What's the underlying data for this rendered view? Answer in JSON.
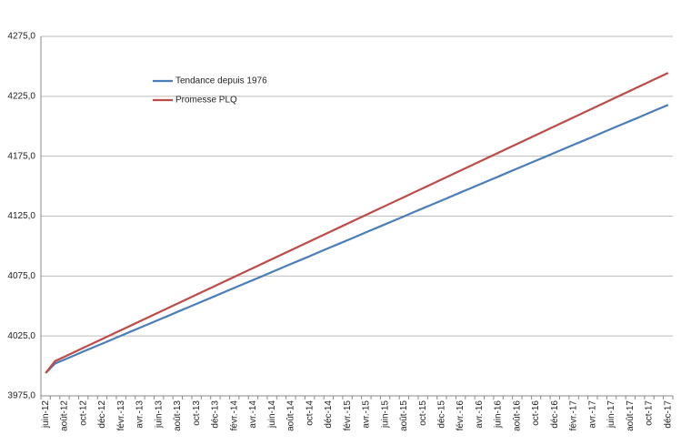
{
  "chart_data": {
    "type": "line",
    "categories": [
      "juin-12",
      null,
      "août-12",
      null,
      "oct-12",
      null,
      "déc-12",
      null,
      "févr.-13",
      null,
      "avr.-13",
      null,
      "juin-13",
      null,
      "août-13",
      null,
      "oct-13",
      null,
      "déc-13",
      null,
      "févr.-14",
      null,
      "avr.-14",
      null,
      "juin-14",
      null,
      "août-14",
      null,
      "oct-14",
      null,
      "déc-14",
      null,
      "févr.-15",
      null,
      "avr.-15",
      null,
      "juin-15",
      null,
      "août-15",
      null,
      "oct-15",
      null,
      "déc-15",
      null,
      "févr.-16",
      null,
      "avr.-16",
      null,
      "juin-16",
      null,
      "août-16",
      null,
      "oct-16",
      null,
      "déc-16",
      null,
      "févr.-17",
      null,
      "avr.-17",
      null,
      "juin-17",
      null,
      "août-17",
      null,
      "oct-17",
      null,
      "déc-17"
    ],
    "series": [
      {
        "name": "Tendance depuis 1976",
        "color": "#4a7ebb",
        "values": [
          3994.0,
          4002.0,
          4005.3,
          4008.6,
          4012.0,
          4015.3,
          4018.6,
          4021.9,
          4025.2,
          4028.6,
          4031.9,
          4035.2,
          4038.5,
          4041.8,
          4045.2,
          4048.5,
          4051.8,
          4055.1,
          4058.4,
          4061.8,
          4065.1,
          4068.4,
          4071.7,
          4075.0,
          4078.4,
          4081.7,
          4085.0,
          4088.3,
          4091.6,
          4095.0,
          4098.3,
          4101.6,
          4104.9,
          4108.2,
          4111.6,
          4114.9,
          4118.2,
          4121.5,
          4124.8,
          4128.2,
          4131.5,
          4134.8,
          4138.1,
          4141.4,
          4144.8,
          4148.1,
          4151.4,
          4154.7,
          4158.0,
          4161.4,
          4164.7,
          4168.0,
          4171.3,
          4174.6,
          4178.0,
          4181.3,
          4184.6,
          4187.9,
          4191.2,
          4194.6,
          4197.9,
          4201.2,
          4204.5,
          4207.8,
          4211.2,
          4214.5,
          4217.8
        ]
      },
      {
        "name": "Promesse PLQ",
        "color": "#be4b48",
        "values": [
          3994.0,
          4004.0,
          4007.7,
          4011.4,
          4015.1,
          4018.8,
          4022.5,
          4026.2,
          4029.9,
          4033.6,
          4037.3,
          4041.0,
          4044.7,
          4048.4,
          4052.1,
          4055.8,
          4059.5,
          4063.2,
          4066.9,
          4070.6,
          4074.3,
          4078.0,
          4081.7,
          4085.4,
          4089.1,
          4092.8,
          4096.5,
          4100.2,
          4103.9,
          4107.6,
          4111.3,
          4115.0,
          4118.7,
          4122.4,
          4126.1,
          4129.8,
          4133.5,
          4137.2,
          4140.9,
          4144.6,
          4148.3,
          4152.0,
          4155.7,
          4159.4,
          4163.1,
          4166.8,
          4170.5,
          4174.2,
          4177.9,
          4181.6,
          4185.3,
          4189.0,
          4192.7,
          4196.4,
          4200.1,
          4203.8,
          4207.5,
          4211.2,
          4214.9,
          4218.6,
          4222.3,
          4226.0,
          4229.7,
          4233.4,
          4237.1,
          4240.8,
          4244.5
        ]
      }
    ],
    "ylim": [
      3975,
      4275
    ],
    "yticks": [
      {
        "value": 3975,
        "label": "3975,0"
      },
      {
        "value": 4025,
        "label": "4025,0"
      },
      {
        "value": 4075,
        "label": "4075,0"
      },
      {
        "value": 4125,
        "label": "4125,0"
      },
      {
        "value": 4175,
        "label": "4175,0"
      },
      {
        "value": 4225,
        "label": "4225,0"
      },
      {
        "value": 4275,
        "label": "4275,0"
      }
    ],
    "grid": true
  }
}
